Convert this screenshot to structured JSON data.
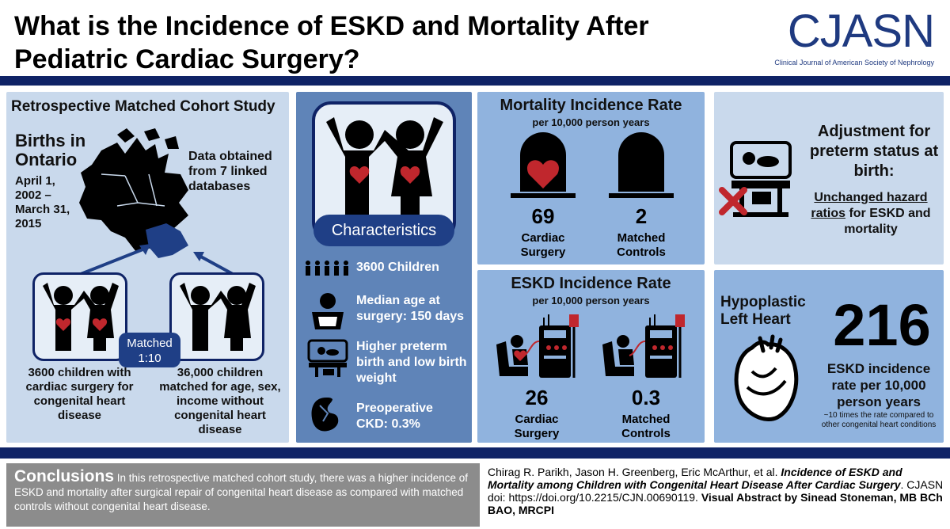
{
  "header": {
    "title": "What is the Incidence of ESKD and Mortality After Pediatric Cardiac Surgery?",
    "logo_main": "CJASN",
    "logo_sub": "Clinical Journal of American Society of Nephrology"
  },
  "cohort": {
    "title": "Retrospective Matched Cohort Study",
    "births_title": "Births in Ontario",
    "births_dates": "April 1, 2002 – March 31, 2015",
    "data_obtained": "Data obtained from 7 linked databases",
    "matched_label": "Matched 1:10",
    "group1": "3600 children with cardiac surgery for congenital heart disease",
    "group2": "36,000 children matched for age, sex, income without congenital heart disease"
  },
  "characteristics": {
    "label": "Characteristics",
    "items": [
      {
        "text": "3600 Children"
      },
      {
        "text": "Median age at surgery: 150 days"
      },
      {
        "text": "Higher preterm birth and low birth weight"
      },
      {
        "text": "Preoperative CKD: 0.3%"
      }
    ]
  },
  "mortality": {
    "title": "Mortality Incidence Rate",
    "subtitle": "per 10,000 person years",
    "cardiac_value": "69",
    "cardiac_label": "Cardiac Surgery",
    "control_value": "2",
    "control_label": "Matched Controls"
  },
  "eskd": {
    "title": "ESKD Incidence Rate",
    "subtitle": "per 10,000 person years",
    "cardiac_value": "26",
    "cardiac_label": "Cardiac Surgery",
    "control_value": "0.3",
    "control_label": "Matched Controls"
  },
  "adjustment": {
    "title": "Adjustment for preterm status at birth:",
    "highlight": "Unchanged hazard ratios",
    "rest": " for ESKD and mortality"
  },
  "hlh": {
    "title": "Hypoplastic Left Heart",
    "number": "216",
    "text": "ESKD incidence rate per 10,000 person years",
    "note": "~10 times the rate compared to other congenital heart conditions"
  },
  "conclusions": {
    "heading": "Conclusions",
    "text": " In this retrospective matched cohort study, there was a higher incidence of ESKD and mortality after surgical repair of congenital heart disease as compared with matched controls without congenital heart disease."
  },
  "citation": {
    "authors": "Chirag R. Parikh, Jason H. Greenberg, Eric McArthur, et al. ",
    "article": "Incidence of ESKD and Mortality among Children with Congenital Heart Disease After Cardiac Surgery",
    "journal": ". CJASN doi: https://doi.org/10.2215/CJN.00690119. ",
    "credit": "Visual Abstract by Sinead Stoneman, MB BCh BAO, MRCPI"
  },
  "colors": {
    "navy": "#0f2366",
    "panel_light": "#c9d9ec",
    "panel_mid": "#90b3de",
    "panel_dark": "#5f84b8",
    "heart_red": "#c0272d",
    "conclusions_gray": "#8c8c8c"
  },
  "icons": [
    "canada-map-icon",
    "children-icon",
    "heart-icon",
    "baby-icon",
    "incubator-icon",
    "kidney-icon",
    "tombstone-icon",
    "dialysis-icon",
    "hypoplastic-heart-icon",
    "x-mark-icon"
  ]
}
